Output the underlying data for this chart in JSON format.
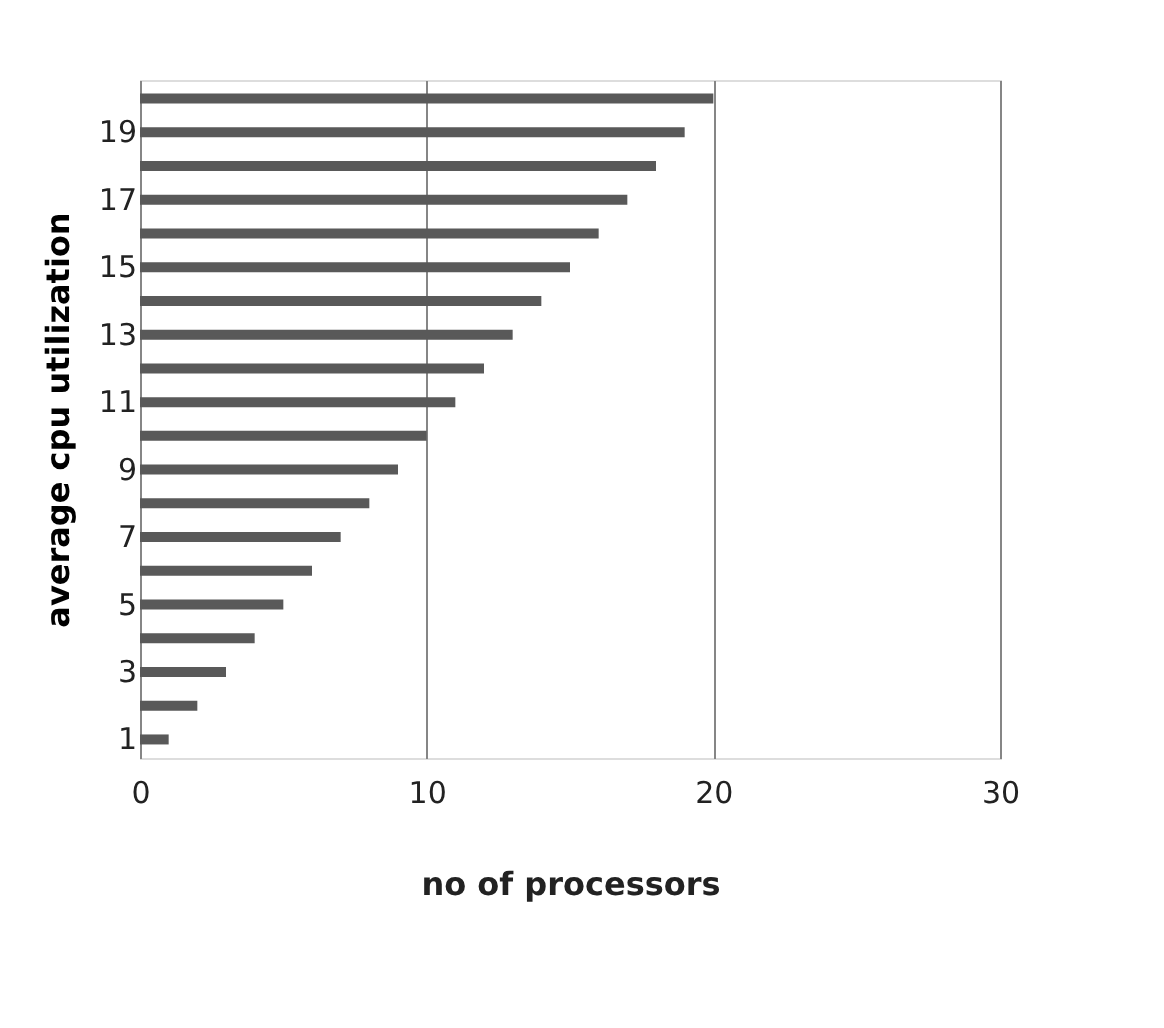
{
  "chart_data": {
    "type": "bar",
    "orientation": "horizontal",
    "xlabel": "no of processors",
    "ylabel": "average cpu utilization",
    "categories": [
      null,
      "19",
      null,
      "17",
      null,
      "15",
      null,
      "13",
      null,
      "11",
      null,
      "9",
      null,
      "7",
      null,
      "5",
      null,
      "3",
      null,
      "1"
    ],
    "values": [
      20,
      19,
      18,
      17,
      16,
      15,
      14,
      13,
      12,
      11,
      10,
      9,
      8,
      7,
      6,
      5,
      4,
      3,
      2,
      1
    ],
    "color": "#595959",
    "xlim": [
      0,
      30
    ],
    "xticks": [
      0,
      10,
      20,
      30
    ],
    "grid": "x"
  }
}
